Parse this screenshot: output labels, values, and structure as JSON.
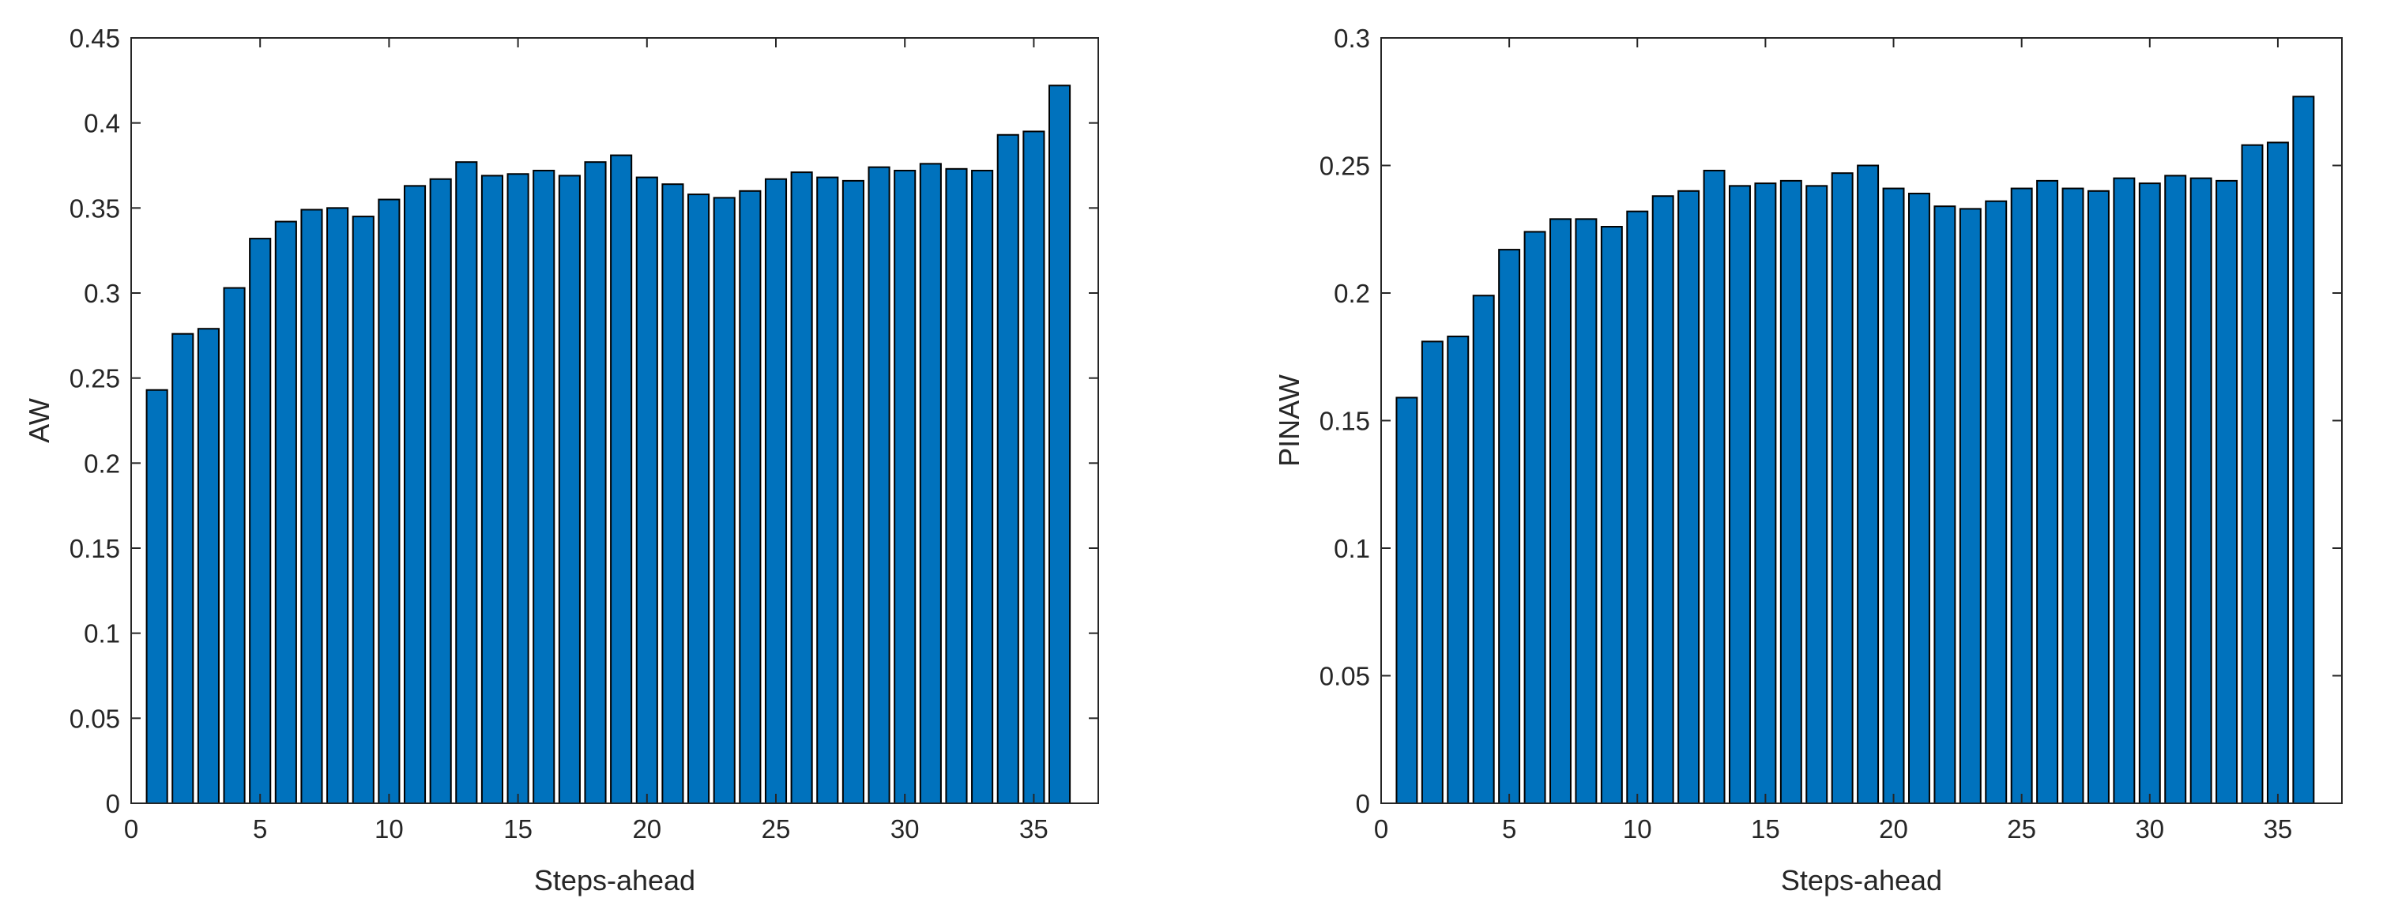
{
  "chart_data": [
    {
      "type": "bar",
      "xlabel": "Steps-ahead",
      "ylabel": "AW",
      "xlim": [
        0,
        37.5
      ],
      "ylim": [
        0,
        0.45
      ],
      "xticks": [
        0,
        5,
        10,
        15,
        20,
        25,
        30,
        35
      ],
      "yticks": [
        0,
        0.05,
        0.1,
        0.15,
        0.2,
        0.25,
        0.3,
        0.35,
        0.4,
        0.45
      ],
      "ytick_labels": [
        "0",
        "0.05",
        "0.1",
        "0.15",
        "0.2",
        "0.25",
        "0.3",
        "0.35",
        "0.4",
        "0.45"
      ],
      "grid": false,
      "bar_color": "#0072BD",
      "categories": [
        1,
        2,
        3,
        4,
        5,
        6,
        7,
        8,
        9,
        10,
        11,
        12,
        13,
        14,
        15,
        16,
        17,
        18,
        19,
        20,
        21,
        22,
        23,
        24,
        25,
        26,
        27,
        28,
        29,
        30,
        31,
        32,
        33,
        34,
        35,
        36
      ],
      "values": [
        0.243,
        0.276,
        0.279,
        0.303,
        0.332,
        0.342,
        0.349,
        0.35,
        0.345,
        0.355,
        0.363,
        0.367,
        0.377,
        0.369,
        0.37,
        0.372,
        0.369,
        0.377,
        0.381,
        0.368,
        0.364,
        0.358,
        0.356,
        0.36,
        0.367,
        0.371,
        0.368,
        0.366,
        0.374,
        0.372,
        0.376,
        0.373,
        0.372,
        0.393,
        0.395,
        0.422
      ]
    },
    {
      "type": "bar",
      "xlabel": "Steps-ahead",
      "ylabel": "PINAW",
      "xlim": [
        0,
        37.5
      ],
      "ylim": [
        0,
        0.3
      ],
      "xticks": [
        0,
        5,
        10,
        15,
        20,
        25,
        30,
        35
      ],
      "yticks": [
        0,
        0.05,
        0.1,
        0.15,
        0.2,
        0.25,
        0.3
      ],
      "ytick_labels": [
        "0",
        "0.05",
        "0.1",
        "0.15",
        "0.2",
        "0.25",
        "0.3"
      ],
      "grid": false,
      "bar_color": "#0072BD",
      "categories": [
        1,
        2,
        3,
        4,
        5,
        6,
        7,
        8,
        9,
        10,
        11,
        12,
        13,
        14,
        15,
        16,
        17,
        18,
        19,
        20,
        21,
        22,
        23,
        24,
        25,
        26,
        27,
        28,
        29,
        30,
        31,
        32,
        33,
        34,
        35,
        36
      ],
      "values": [
        0.159,
        0.181,
        0.183,
        0.199,
        0.217,
        0.224,
        0.229,
        0.229,
        0.226,
        0.232,
        0.238,
        0.24,
        0.248,
        0.242,
        0.243,
        0.244,
        0.242,
        0.247,
        0.25,
        0.241,
        0.239,
        0.234,
        0.233,
        0.236,
        0.241,
        0.244,
        0.241,
        0.24,
        0.245,
        0.243,
        0.246,
        0.245,
        0.244,
        0.258,
        0.259,
        0.277
      ]
    }
  ]
}
